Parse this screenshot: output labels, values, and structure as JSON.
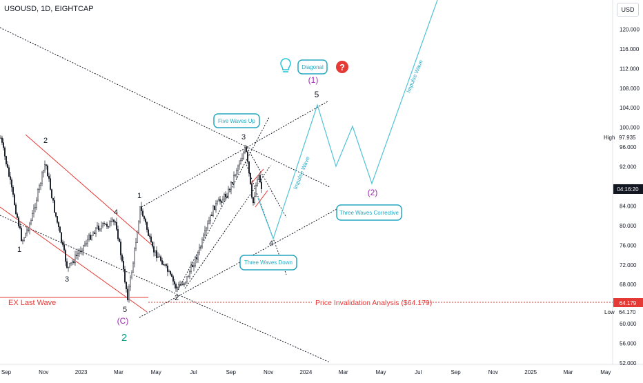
{
  "header": {
    "symbol": "USOUSD, 1D, EIGHTCAP",
    "currency": "USD"
  },
  "chart_data": {
    "type": "candlestick",
    "y_axis": {
      "ticks": [
        "120.000",
        "116.000",
        "112.000",
        "108.000",
        "104.000",
        "100.000",
        "96.000",
        "92.000",
        "88.000",
        "84.000",
        "80.000",
        "76.000",
        "72.000",
        "68.000",
        "64.000",
        "60.000",
        "56.000",
        "52.000"
      ],
      "range": [
        52,
        124
      ]
    },
    "x_axis": {
      "ticks": [
        "Sep",
        "Nov",
        "2023",
        "Mar",
        "May",
        "Jul",
        "Sep",
        "Nov",
        "2024",
        "Mar",
        "May",
        "Jul",
        "Sep",
        "Nov",
        "2025",
        "Mar",
        "May"
      ]
    },
    "price_markers": {
      "high_label": "High",
      "high_value": "97.935",
      "current_value": "04:16:20",
      "invalidation_value": "64.179",
      "low_label": "Low",
      "low_value": "64.170"
    },
    "wave_labels": {
      "left_1": "1",
      "left_2": "2",
      "left_3": "3",
      "left_4": "4",
      "left_5": "5",
      "c_label": "(C)",
      "big_2": "2",
      "mid_1": "1",
      "mid_2": "2",
      "mid_3": "3",
      "mid_4": "4",
      "mid_5": "5",
      "top_1": "(1)",
      "top_2": "(2)"
    },
    "annotations": {
      "diagonal": "Diagonal",
      "five_waves_up": "Five Waves Up",
      "three_waves_corrective": "Three Waves Corrective",
      "three_waves_down": "Three Waves Down",
      "impulse_wave": "Impulse Wave",
      "ex_last_wave": "EX Last Wave",
      "price_invalidation": "Price Invalidation Analysis ($64.179)"
    },
    "colors": {
      "candle_color": "#131722",
      "forecast_color": "#4fc3d6",
      "invalidation_color": "#e53935",
      "channel_red": "#e53935",
      "purple_label": "#9c27b0",
      "teal_label": "#089981",
      "current_price_bg": "#131722",
      "invalidation_bg": "#e53935"
    },
    "grid": false
  }
}
